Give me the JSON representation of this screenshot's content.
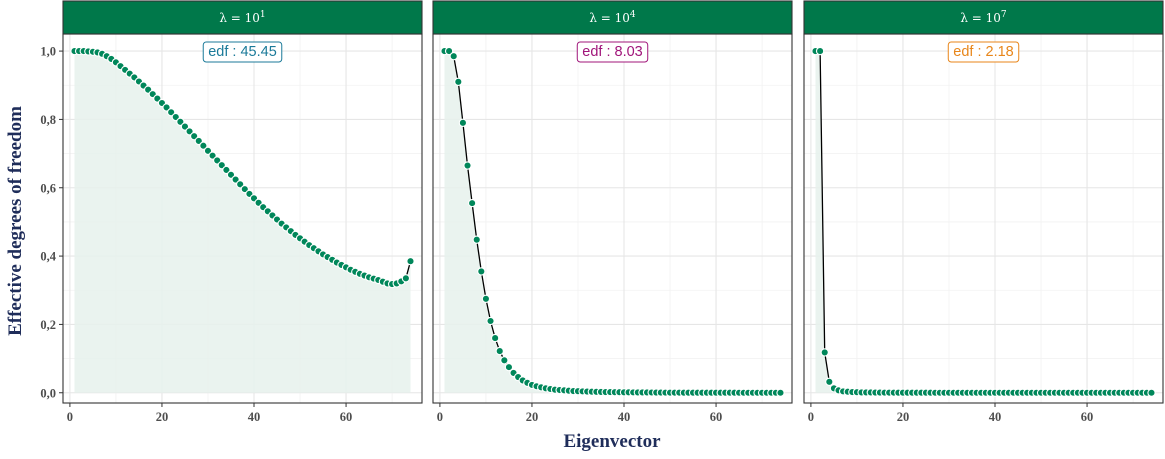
{
  "chart_data": {
    "type": "line",
    "facet_layout": "1 row x 3 panels, shared y axis",
    "xlabel": "Eigenvector",
    "ylabel": "Effective degrees of freedom",
    "xlim": [
      -1.5,
      76.5
    ],
    "ylim": [
      -0.03,
      1.05
    ],
    "x_ticks": [
      0,
      20,
      40,
      60
    ],
    "x_tick_labels": [
      "0",
      "20",
      "40",
      "60"
    ],
    "y_ticks": [
      0,
      0.2,
      0.4,
      0.6,
      0.8,
      1.0
    ],
    "y_tick_labels": [
      "0,0",
      "0,2",
      "0,4",
      "0,6",
      "0,8",
      "1,0"
    ],
    "grid": true,
    "colors": {
      "strip_fill": "#00784a",
      "points": "#00875a",
      "area_fill": "#e6f1ec",
      "line": "#000000"
    },
    "panels": [
      {
        "strip_prefix": "λ = 10",
        "strip_exponent": "1",
        "edf_label": "edf : 45.45",
        "edf_color": "#1b7a99",
        "x": [
          1,
          2,
          3,
          4,
          5,
          6,
          7,
          8,
          9,
          10,
          11,
          12,
          13,
          14,
          15,
          16,
          17,
          18,
          19,
          20,
          21,
          22,
          23,
          24,
          25,
          26,
          27,
          28,
          29,
          30,
          31,
          32,
          33,
          34,
          35,
          36,
          37,
          38,
          39,
          40,
          41,
          42,
          43,
          44,
          45,
          46,
          47,
          48,
          49,
          50,
          51,
          52,
          53,
          54,
          55,
          56,
          57,
          58,
          59,
          60,
          61,
          62,
          63,
          64,
          65,
          66,
          67,
          68,
          69,
          70,
          71,
          72,
          73,
          74
        ],
        "y": [
          1.0,
          1.0,
          1.0,
          0.999,
          0.998,
          0.996,
          0.992,
          0.985,
          0.977,
          0.967,
          0.956,
          0.945,
          0.934,
          0.923,
          0.911,
          0.899,
          0.887,
          0.874,
          0.861,
          0.848,
          0.835,
          0.821,
          0.807,
          0.793,
          0.779,
          0.765,
          0.751,
          0.737,
          0.723,
          0.708,
          0.694,
          0.68,
          0.666,
          0.652,
          0.638,
          0.624,
          0.61,
          0.596,
          0.582,
          0.569,
          0.556,
          0.543,
          0.531,
          0.519,
          0.507,
          0.495,
          0.484,
          0.473,
          0.462,
          0.452,
          0.442,
          0.432,
          0.423,
          0.414,
          0.405,
          0.397,
          0.389,
          0.381,
          0.374,
          0.367,
          0.36,
          0.354,
          0.348,
          0.343,
          0.338,
          0.334,
          0.33,
          0.325,
          0.32,
          0.318,
          0.32,
          0.326,
          0.335,
          0.385
        ]
      },
      {
        "strip_prefix": "λ = 10",
        "strip_exponent": "4",
        "edf_label": "edf :  8.03",
        "edf_color": "#a0157a",
        "x": [
          1,
          2,
          3,
          4,
          5,
          6,
          7,
          8,
          9,
          10,
          11,
          12,
          13,
          14,
          15,
          16,
          17,
          18,
          19,
          20,
          21,
          22,
          23,
          24,
          25,
          26,
          27,
          28,
          29,
          30,
          31,
          32,
          33,
          34,
          35,
          36,
          37,
          38,
          39,
          40,
          41,
          42,
          43,
          44,
          45,
          46,
          47,
          48,
          49,
          50,
          51,
          52,
          53,
          54,
          55,
          56,
          57,
          58,
          59,
          60,
          61,
          62,
          63,
          64,
          65,
          66,
          67,
          68,
          69,
          70,
          71,
          72,
          73,
          74
        ],
        "y": [
          1.0,
          1.0,
          0.985,
          0.91,
          0.79,
          0.665,
          0.555,
          0.448,
          0.355,
          0.275,
          0.21,
          0.16,
          0.122,
          0.095,
          0.075,
          0.058,
          0.046,
          0.036,
          0.029,
          0.023,
          0.019,
          0.016,
          0.013,
          0.011,
          0.009,
          0.008,
          0.007,
          0.006,
          0.005,
          0.0045,
          0.004,
          0.0035,
          0.003,
          0.0027,
          0.0024,
          0.0021,
          0.0019,
          0.0017,
          0.0015,
          0.0013,
          0.0012,
          0.0011,
          0.001,
          0.0009,
          0.0008,
          0.0007,
          0.0006,
          0.0005,
          0.0004,
          0.0003,
          0.0003,
          0.0003,
          0.0002,
          0.0002,
          0.0002,
          0.0002,
          0.0001,
          0.0001,
          0.0001,
          0.0001,
          0.0001,
          0.0001,
          0.0001,
          0.0001,
          0.0,
          0.0,
          0.0,
          0.0,
          0.0,
          0.0,
          0.0,
          0.0,
          0.0,
          0.0
        ]
      },
      {
        "strip_prefix": "λ = 10",
        "strip_exponent": "7",
        "edf_label": "edf :  2.18",
        "edf_color": "#e8861a",
        "x": [
          1,
          2,
          3,
          4,
          5,
          6,
          7,
          8,
          9,
          10,
          11,
          12,
          13,
          14,
          15,
          16,
          17,
          18,
          19,
          20,
          21,
          22,
          23,
          24,
          25,
          26,
          27,
          28,
          29,
          30,
          31,
          32,
          33,
          34,
          35,
          36,
          37,
          38,
          39,
          40,
          41,
          42,
          43,
          44,
          45,
          46,
          47,
          48,
          49,
          50,
          51,
          52,
          53,
          54,
          55,
          56,
          57,
          58,
          59,
          60,
          61,
          62,
          63,
          64,
          65,
          66,
          67,
          68,
          69,
          70,
          71,
          72,
          73,
          74
        ],
        "y": [
          1.0,
          1.0,
          0.118,
          0.032,
          0.013,
          0.007,
          0.004,
          0.003,
          0.002,
          0.0015,
          0.001,
          0.001,
          0.0008,
          0.0006,
          0.0005,
          0.0004,
          0.0003,
          0.0003,
          0.0002,
          0.0002,
          0.0002,
          0.0001,
          0.0001,
          0.0001,
          0.0001,
          0.0001,
          0.0,
          0.0,
          0.0,
          0.0,
          0.0,
          0.0,
          0.0,
          0.0,
          0.0,
          0.0,
          0.0,
          0.0,
          0.0,
          0.0,
          0.0,
          0.0,
          0.0,
          0.0,
          0.0,
          0.0,
          0.0,
          0.0,
          0.0,
          0.0,
          0.0,
          0.0,
          0.0,
          0.0,
          0.0,
          0.0,
          0.0,
          0.0,
          0.0,
          0.0,
          0.0,
          0.0,
          0.0,
          0.0,
          0.0,
          0.0,
          0.0,
          0.0,
          0.0,
          0.0,
          0.0,
          0.0,
          0.0,
          0.0
        ]
      }
    ]
  }
}
